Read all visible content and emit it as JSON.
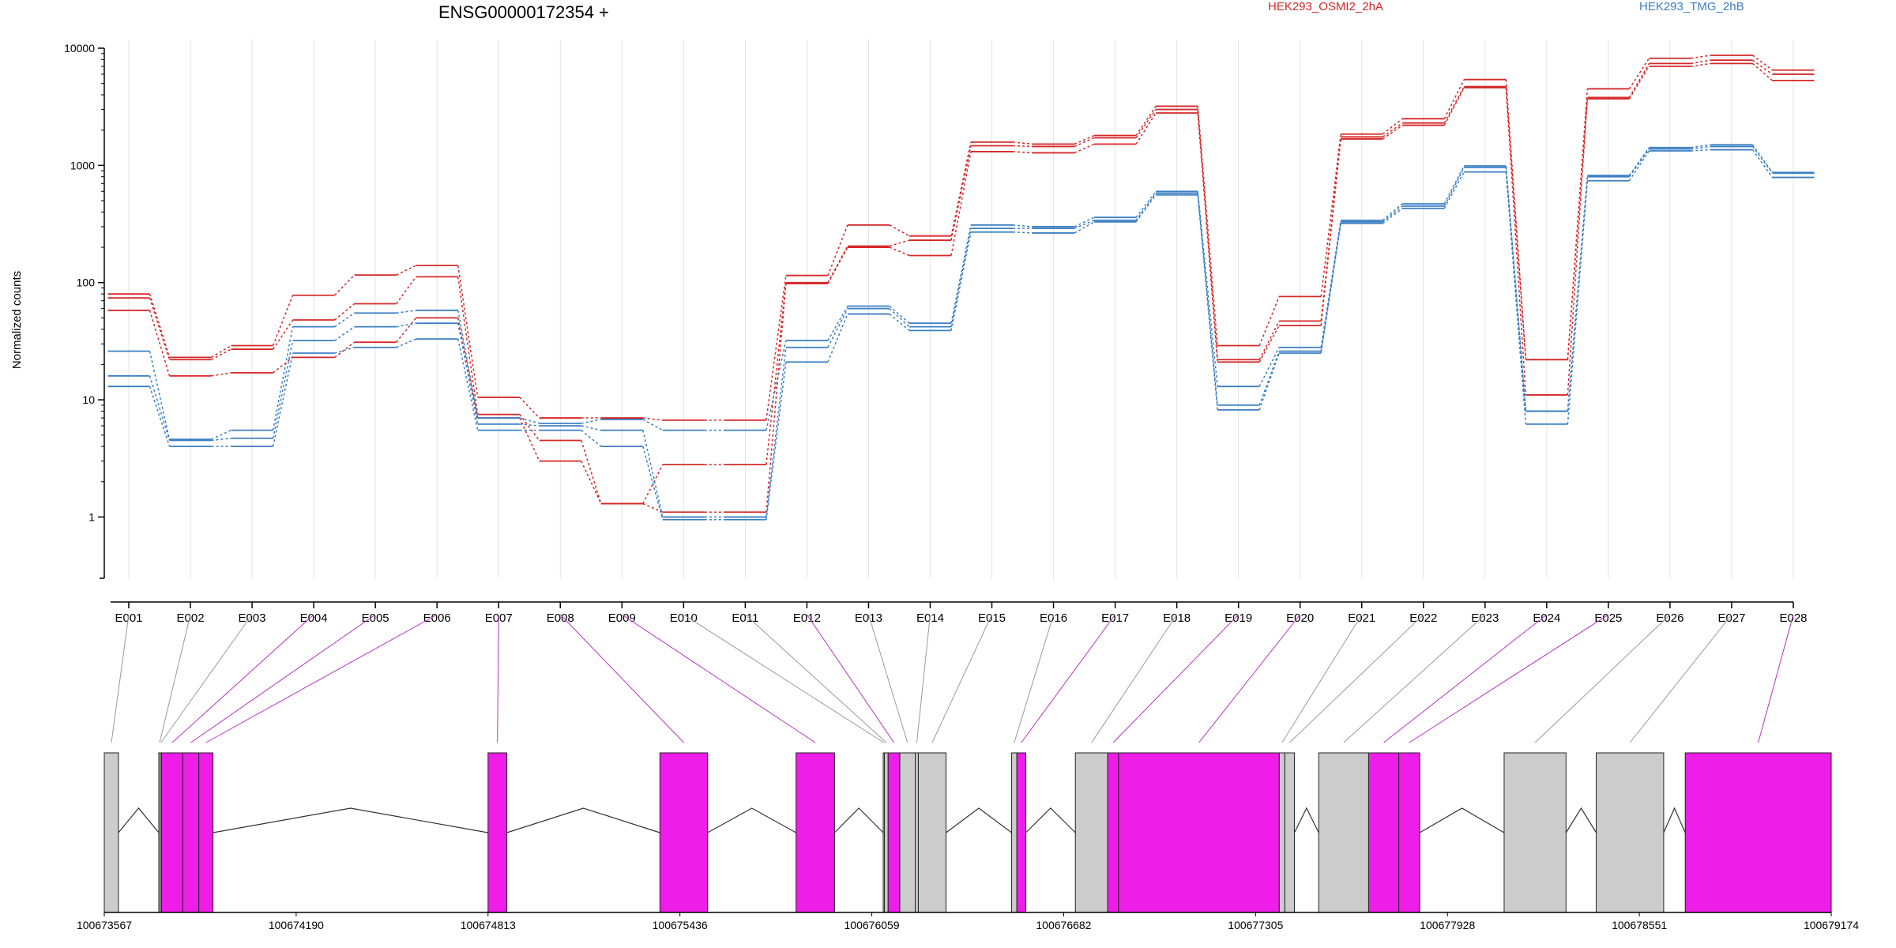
{
  "chart_data": {
    "type": "line",
    "title": "ENSG00000172354 +",
    "ylabel": "Normalized counts",
    "xlabel": "",
    "y_scale": "log",
    "ylim": [
      0.3,
      10000
    ],
    "y_ticks": [
      1,
      10,
      100,
      1000,
      10000
    ],
    "y_tick_labels": [
      "1",
      "10",
      "100",
      "1000",
      "10000"
    ],
    "grid": "vertical",
    "legend_position": "top",
    "categories": [
      "E001",
      "E002",
      "E003",
      "E004",
      "E005",
      "E006",
      "E007",
      "E008",
      "E009",
      "E010",
      "E011",
      "E012",
      "E013",
      "E014",
      "E015",
      "E016",
      "E017",
      "E018",
      "E019",
      "E020",
      "E021",
      "E022",
      "E023",
      "E024",
      "E025",
      "E026",
      "E027",
      "E028"
    ],
    "groups": [
      {
        "name": "HEK293_OSMI2_2hA",
        "color": "#d62728"
      },
      {
        "name": "HEK293_TMG_2hB",
        "color": "#3b7fc4"
      }
    ],
    "series": [
      {
        "group": "HEK293_OSMI2_2hA",
        "values": [
          80,
          23,
          29,
          78,
          116,
          140,
          10.5,
          7.0,
          7.0,
          6.7,
          6.7,
          115,
          310,
          250,
          1580,
          1520,
          1800,
          3200,
          29,
          76,
          1850,
          2500,
          5400,
          22,
          4500,
          8200,
          8700,
          6500
        ]
      },
      {
        "group": "HEK293_OSMI2_2hA",
        "values": [
          74,
          22,
          27,
          48,
          66,
          112,
          7.5,
          4.5,
          1.3,
          2.8,
          2.8,
          100,
          205,
          230,
          1470,
          1450,
          1720,
          3000,
          22,
          47,
          1750,
          2300,
          4700,
          11,
          3800,
          7400,
          7900,
          6000
        ]
      },
      {
        "group": "HEK293_OSMI2_2hA",
        "values": [
          58,
          16,
          17,
          23,
          31,
          50,
          7.0,
          3.0,
          1.3,
          1.1,
          1.1,
          98,
          200,
          170,
          1310,
          1280,
          1520,
          2800,
          21,
          43,
          1680,
          2200,
          4600,
          22,
          3700,
          7000,
          7400,
          5300
        ]
      },
      {
        "group": "HEK293_TMG_2hB",
        "values": [
          26,
          4.6,
          5.5,
          42,
          55,
          58,
          7.0,
          6.3,
          6.8,
          5.5,
          5.5,
          32,
          63,
          45,
          310,
          300,
          360,
          600,
          13,
          28,
          340,
          470,
          990,
          8.0,
          820,
          1420,
          1500,
          870
        ]
      },
      {
        "group": "HEK293_TMG_2hB",
        "values": [
          16,
          4.5,
          4.7,
          32,
          42,
          45,
          6.2,
          6.0,
          5.5,
          1.0,
          1.0,
          28,
          60,
          42,
          290,
          290,
          340,
          580,
          9.0,
          26,
          330,
          450,
          960,
          8.0,
          800,
          1380,
          1450,
          860
        ]
      },
      {
        "group": "HEK293_TMG_2hB",
        "values": [
          13,
          4.0,
          4.0,
          25,
          28,
          33,
          5.5,
          5.5,
          4.0,
          0.95,
          0.95,
          21,
          54,
          39,
          270,
          265,
          330,
          560,
          8.2,
          25,
          320,
          430,
          880,
          6.2,
          740,
          1330,
          1360,
          790
        ]
      }
    ]
  },
  "gene_model": {
    "coordinate_labels": [
      "100673567",
      "100674190",
      "100674813",
      "100675436",
      "100676059",
      "100676682",
      "100677305",
      "100677928",
      "100678551",
      "100679174"
    ],
    "coordinate_values": [
      100673567,
      100674190,
      100674813,
      100675436,
      100676059,
      100676682,
      100677305,
      100677928,
      100678551,
      100679174
    ],
    "gene_start": 100673567,
    "gene_end": 100679174,
    "highlight_color": "#ee1de8",
    "neutral_color": "#cccccc",
    "exons": [
      {
        "id": "E001",
        "start": 100673567,
        "end": 100673613,
        "highlight": false
      },
      {
        "id": "E002",
        "start": 100673744,
        "end": 100673749,
        "highlight": false
      },
      {
        "id": "E003",
        "start": 100673749,
        "end": 100673753,
        "highlight": false
      },
      {
        "id": "E004",
        "start": 100673753,
        "end": 100673822,
        "highlight": true
      },
      {
        "id": "E005",
        "start": 100673822,
        "end": 100673874,
        "highlight": true
      },
      {
        "id": "E006",
        "start": 100673874,
        "end": 100673920,
        "highlight": true
      },
      {
        "id": "E007",
        "start": 100674813,
        "end": 100674874,
        "highlight": true
      },
      {
        "id": "E008",
        "start": 100675371,
        "end": 100675526,
        "highlight": true
      },
      {
        "id": "E009",
        "start": 100675813,
        "end": 100675938,
        "highlight": true
      },
      {
        "id": "E010",
        "start": 100676096,
        "end": 100676100,
        "highlight": false
      },
      {
        "id": "E011",
        "start": 100676100,
        "end": 100676112,
        "highlight": false
      },
      {
        "id": "E012",
        "start": 100676112,
        "end": 100676150,
        "highlight": true
      },
      {
        "id": "E013",
        "start": 100676150,
        "end": 100676200,
        "highlight": false
      },
      {
        "id": "E014",
        "start": 100676200,
        "end": 100676210,
        "highlight": false
      },
      {
        "id": "E015",
        "start": 100676210,
        "end": 100676300,
        "highlight": false
      },
      {
        "id": "E016",
        "start": 100676513,
        "end": 100676530,
        "highlight": false
      },
      {
        "id": "E017",
        "start": 100676530,
        "end": 100676559,
        "highlight": true
      },
      {
        "id": "E018",
        "start": 100676720,
        "end": 100676825,
        "highlight": false
      },
      {
        "id": "E019",
        "start": 100676825,
        "end": 100676860,
        "highlight": true
      },
      {
        "id": "E020",
        "start": 100676860,
        "end": 100677382,
        "highlight": true
      },
      {
        "id": "E021",
        "start": 100677382,
        "end": 100677400,
        "highlight": false
      },
      {
        "id": "E022",
        "start": 100677400,
        "end": 100677431,
        "highlight": false
      },
      {
        "id": "E023",
        "start": 100677510,
        "end": 100677672,
        "highlight": false
      },
      {
        "id": "E024",
        "start": 100677672,
        "end": 100677770,
        "highlight": true
      },
      {
        "id": "E025",
        "start": 100677770,
        "end": 100677838,
        "highlight": true
      },
      {
        "id": "E026",
        "start": 100678112,
        "end": 100678313,
        "highlight": false
      },
      {
        "id": "E027",
        "start": 100678411,
        "end": 100678630,
        "highlight": false
      },
      {
        "id": "E028",
        "start": 100678700,
        "end": 100679174,
        "highlight": true
      }
    ]
  }
}
